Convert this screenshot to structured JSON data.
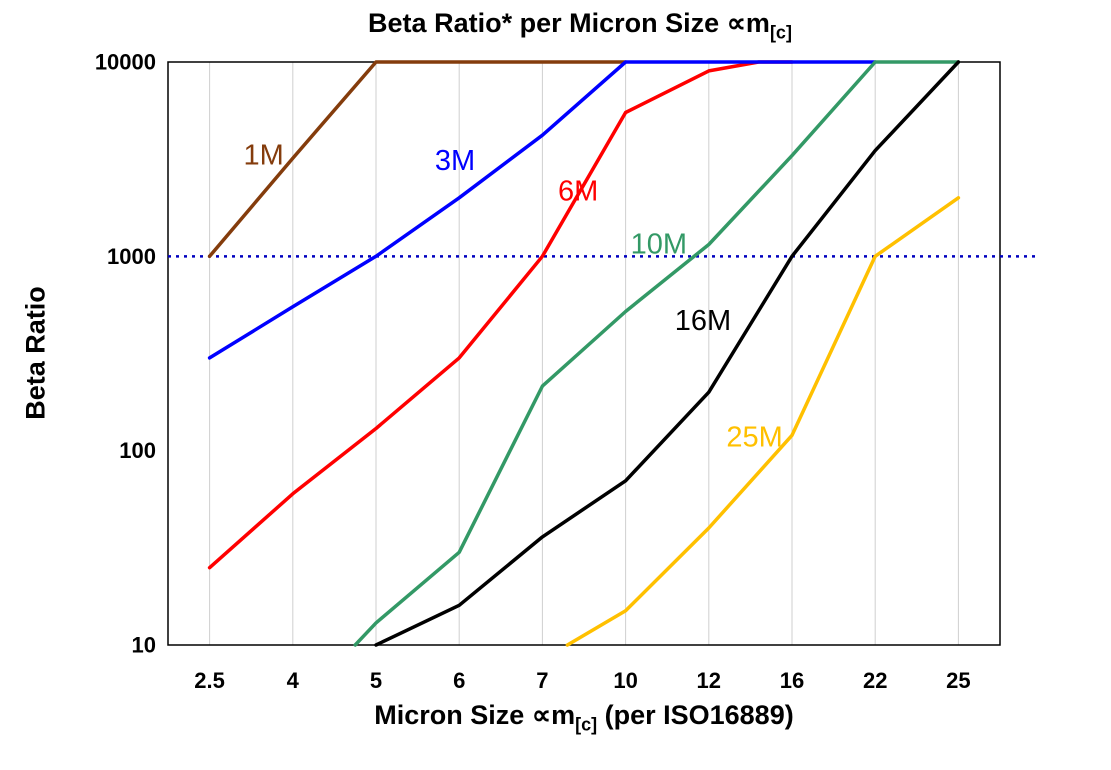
{
  "chart": {
    "title_pre": "Beta Ratio* per Micron Size ∝m",
    "title_sub": "[c]",
    "y_axis": {
      "label": "Beta Ratio"
    },
    "x_axis": {
      "label_pre": "Micron Size ∝m",
      "label_sub": "[c]",
      "label_post": " (per ISO16889)"
    }
  },
  "chart_data": {
    "type": "line",
    "title": "Beta Ratio* per Micron Size ∝m[c]",
    "xlabel": "Micron Size ∝m[c] (per ISO16889)",
    "ylabel": "Beta Ratio",
    "x_categories": [
      "2.5",
      "4",
      "5",
      "6",
      "7",
      "10",
      "12",
      "16",
      "22",
      "25"
    ],
    "y_scale": "log",
    "ylim": [
      10,
      10000
    ],
    "y_ticks": [
      10,
      100,
      1000,
      10000
    ],
    "grid": "vertical-light",
    "legend": "inline-data-labels",
    "reference_line": {
      "y": 1000,
      "color": "#0000BF",
      "style": "dotted"
    },
    "index_note": "series points are [x_category_index, beta_ratio]; fractional index = position between tick marks",
    "series": [
      {
        "name": "6M",
        "color": "#FF0000",
        "points": [
          [
            0,
            25
          ],
          [
            1,
            60
          ],
          [
            2,
            130
          ],
          [
            3,
            300
          ],
          [
            4,
            1000
          ],
          [
            5,
            5500
          ],
          [
            6,
            9000
          ],
          [
            6.6,
            10000
          ],
          [
            7,
            10000
          ]
        ],
        "label_at": [
          4.43,
          2150
        ]
      },
      {
        "name": "1M",
        "color": "#843C0C",
        "points": [
          [
            0,
            1000
          ],
          [
            1,
            3200
          ],
          [
            2,
            10000
          ],
          [
            5,
            10000
          ]
        ],
        "label_at": [
          0.65,
          3300
        ]
      },
      {
        "name": "3M",
        "color": "#0000FF",
        "points": [
          [
            0,
            300
          ],
          [
            1,
            550
          ],
          [
            2,
            1000
          ],
          [
            3,
            2000
          ],
          [
            4,
            4200
          ],
          [
            5,
            10000
          ],
          [
            8,
            10000
          ]
        ],
        "label_at": [
          2.95,
          3100
        ]
      },
      {
        "name": "10M",
        "color": "#339966",
        "points": [
          [
            1.75,
            10
          ],
          [
            2,
            13
          ],
          [
            3,
            30
          ],
          [
            4,
            215
          ],
          [
            5,
            520
          ],
          [
            6,
            1150
          ],
          [
            7,
            3300
          ],
          [
            8,
            10000
          ],
          [
            9,
            10000
          ]
        ],
        "label_at": [
          5.4,
          1150
        ]
      },
      {
        "name": "16M",
        "color": "#000000",
        "points": [
          [
            2,
            10
          ],
          [
            3,
            16
          ],
          [
            4,
            36
          ],
          [
            5,
            70
          ],
          [
            6,
            200
          ],
          [
            7,
            1000
          ],
          [
            8,
            3500
          ],
          [
            9,
            10000
          ]
        ],
        "label_at": [
          5.93,
          465
        ]
      },
      {
        "name": "25M",
        "color": "#FFC000",
        "points": [
          [
            4.3,
            10
          ],
          [
            5,
            15
          ],
          [
            6,
            40
          ],
          [
            7,
            120
          ],
          [
            8,
            1000
          ],
          [
            9,
            2000
          ]
        ],
        "label_at": [
          6.55,
          117
        ]
      }
    ]
  }
}
